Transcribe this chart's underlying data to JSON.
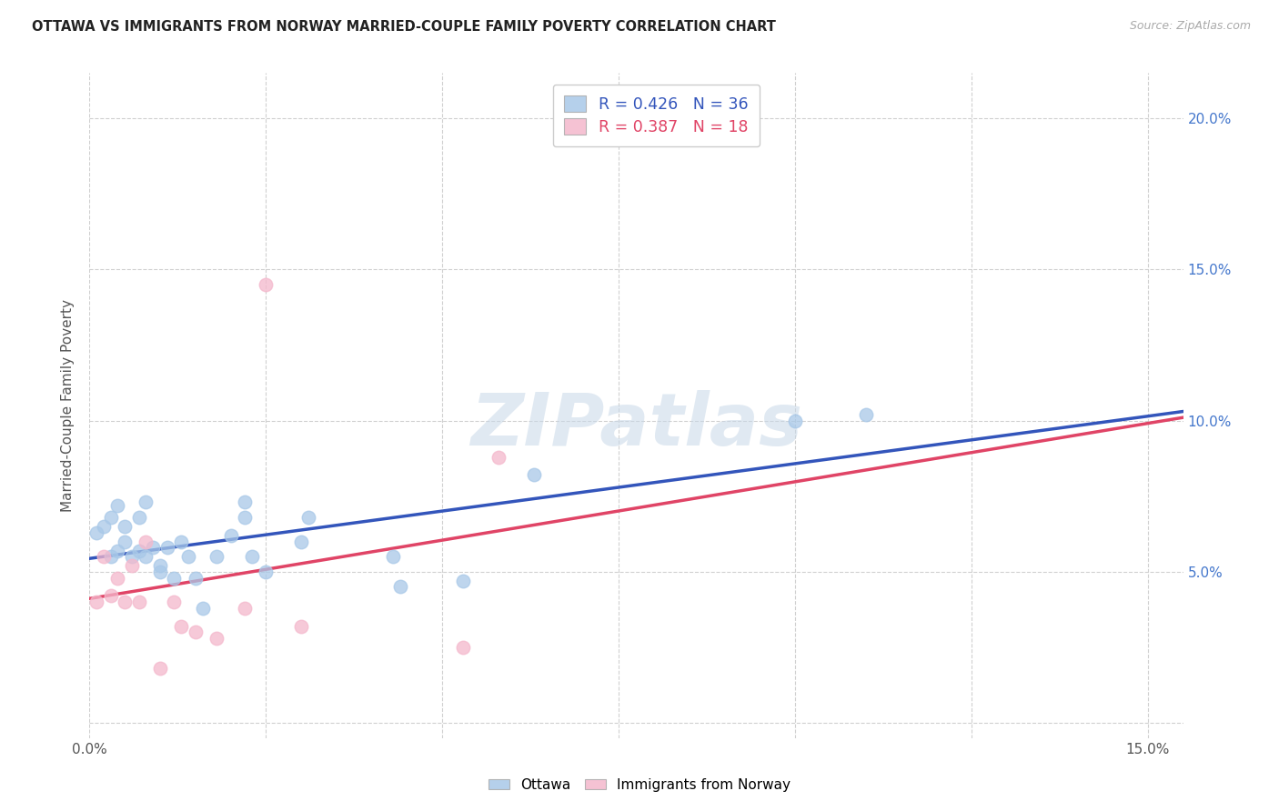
{
  "title": "OTTAWA VS IMMIGRANTS FROM NORWAY MARRIED-COUPLE FAMILY POVERTY CORRELATION CHART",
  "source": "Source: ZipAtlas.com",
  "ylabel": "Married-Couple Family Poverty",
  "watermark": "ZIPatlas",
  "xlim": [
    0.0,
    0.155
  ],
  "ylim": [
    -0.005,
    0.215
  ],
  "xticks": [
    0.0,
    0.025,
    0.05,
    0.075,
    0.1,
    0.125,
    0.15
  ],
  "yticks": [
    0.0,
    0.05,
    0.1,
    0.15,
    0.2
  ],
  "ytick_labels_right": [
    "",
    "5.0%",
    "10.0%",
    "15.0%",
    "20.0%"
  ],
  "ottawa_color": "#a8c8e8",
  "norway_color": "#f4b8cc",
  "ottawa_line_color": "#3355bb",
  "norway_line_color": "#e04466",
  "norway_dash_color": "#ddb0c0",
  "background_color": "#ffffff",
  "grid_color": "#d0d0d0",
  "ottawa_R": "0.426",
  "ottawa_N": "36",
  "norway_R": "0.387",
  "norway_N": "18",
  "ottawa_x": [
    0.001,
    0.002,
    0.003,
    0.003,
    0.004,
    0.004,
    0.005,
    0.005,
    0.006,
    0.007,
    0.007,
    0.008,
    0.008,
    0.009,
    0.01,
    0.01,
    0.011,
    0.012,
    0.013,
    0.014,
    0.015,
    0.016,
    0.018,
    0.02,
    0.022,
    0.022,
    0.023,
    0.025,
    0.03,
    0.031,
    0.043,
    0.044,
    0.053,
    0.063,
    0.1,
    0.11
  ],
  "ottawa_y": [
    0.063,
    0.065,
    0.055,
    0.068,
    0.057,
    0.072,
    0.06,
    0.065,
    0.055,
    0.057,
    0.068,
    0.055,
    0.073,
    0.058,
    0.05,
    0.052,
    0.058,
    0.048,
    0.06,
    0.055,
    0.048,
    0.038,
    0.055,
    0.062,
    0.068,
    0.073,
    0.055,
    0.05,
    0.06,
    0.068,
    0.055,
    0.045,
    0.047,
    0.082,
    0.1,
    0.102
  ],
  "norway_x": [
    0.001,
    0.002,
    0.003,
    0.004,
    0.005,
    0.006,
    0.007,
    0.008,
    0.01,
    0.012,
    0.013,
    0.015,
    0.018,
    0.022,
    0.025,
    0.03,
    0.053,
    0.058
  ],
  "norway_y": [
    0.04,
    0.055,
    0.042,
    0.048,
    0.04,
    0.052,
    0.04,
    0.06,
    0.018,
    0.04,
    0.032,
    0.03,
    0.028,
    0.038,
    0.145,
    0.032,
    0.025,
    0.088
  ]
}
